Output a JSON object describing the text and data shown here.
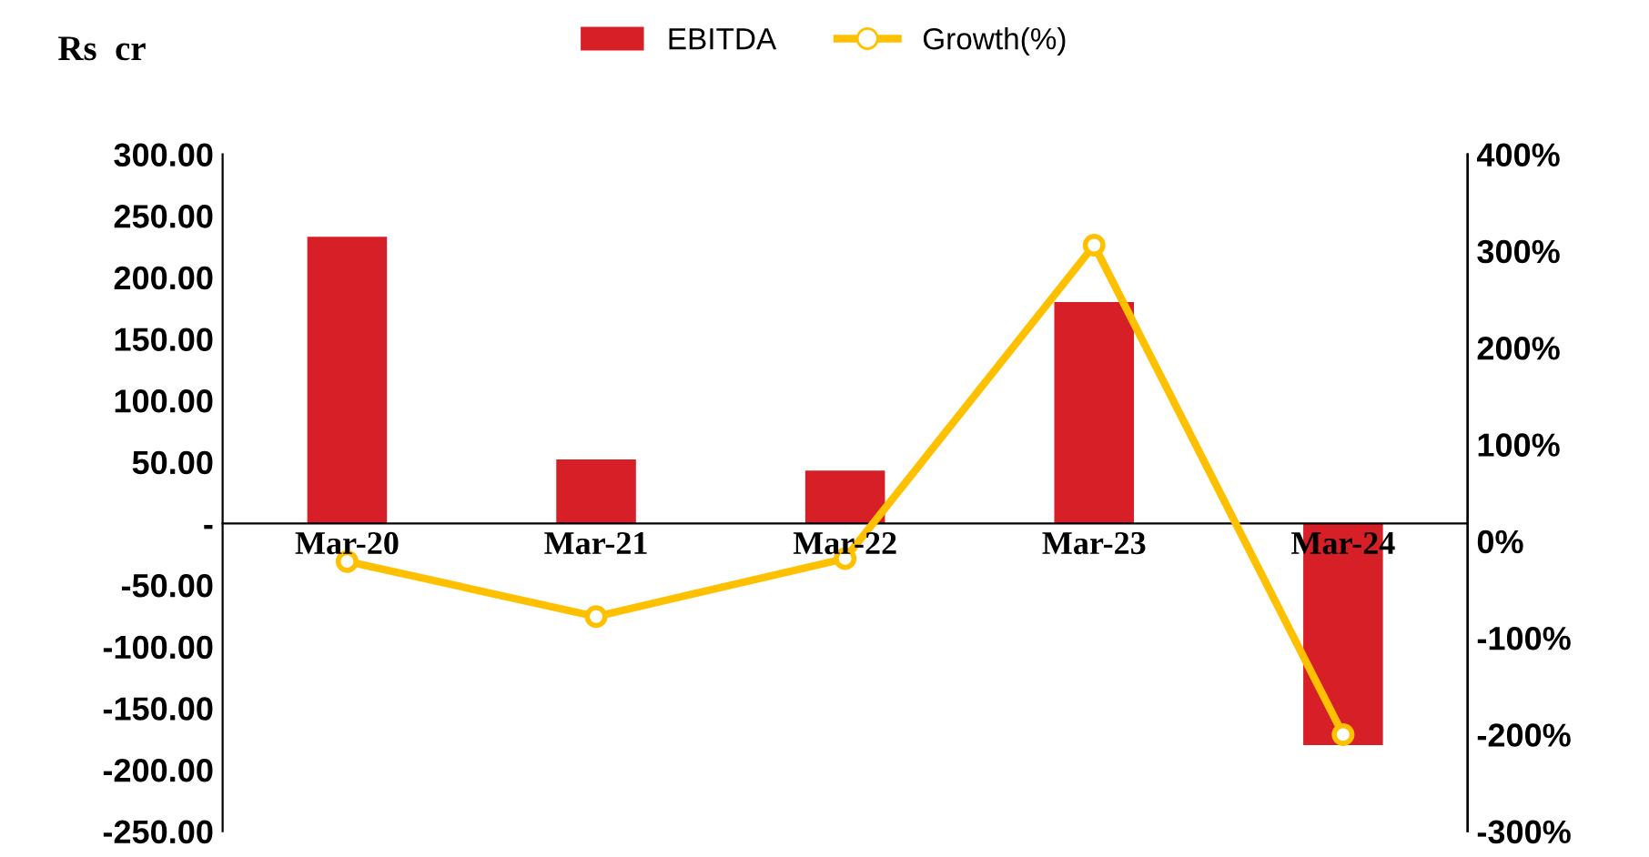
{
  "chart_data": {
    "type": "bar",
    "ylabel": "Rs  cr",
    "categories": [
      "Mar-20",
      "Mar-21",
      "Mar-22",
      "Mar-23",
      "Mar-24"
    ],
    "series": [
      {
        "name": "EBITDA",
        "type": "bar",
        "color": "#d71f27",
        "values": [
          233,
          52,
          43,
          180,
          -180
        ]
      },
      {
        "name": "Growth(%)",
        "type": "line",
        "axis": "y2",
        "color": "#ffc000",
        "marker": "circle",
        "values": [
          -21,
          -78,
          -18,
          306,
          -200
        ]
      }
    ],
    "ylim": [
      -250,
      300
    ],
    "yticks": [
      {
        "value": -250,
        "label": "-250.00"
      },
      {
        "value": -200,
        "label": "-200.00"
      },
      {
        "value": -150,
        "label": "-150.00"
      },
      {
        "value": -100,
        "label": "-100.00"
      },
      {
        "value": -50,
        "label": "-50.00"
      },
      {
        "value": 0,
        "label": "-"
      },
      {
        "value": 50,
        "label": "50.00"
      },
      {
        "value": 100,
        "label": "100.00"
      },
      {
        "value": 150,
        "label": "150.00"
      },
      {
        "value": 200,
        "label": "200.00"
      },
      {
        "value": 250,
        "label": "250.00"
      },
      {
        "value": 300,
        "label": "300.00"
      }
    ],
    "y2lim": [
      -300,
      400
    ],
    "y2ticks": [
      {
        "value": -300,
        "label": "-300%"
      },
      {
        "value": -200,
        "label": "-200%"
      },
      {
        "value": -100,
        "label": "-100%"
      },
      {
        "value": 0,
        "label": "0%"
      },
      {
        "value": 100,
        "label": "100%"
      },
      {
        "value": 200,
        "label": "200%"
      },
      {
        "value": 300,
        "label": "300%"
      },
      {
        "value": 400,
        "label": "400%"
      }
    ],
    "legend": "top",
    "grid": false
  }
}
